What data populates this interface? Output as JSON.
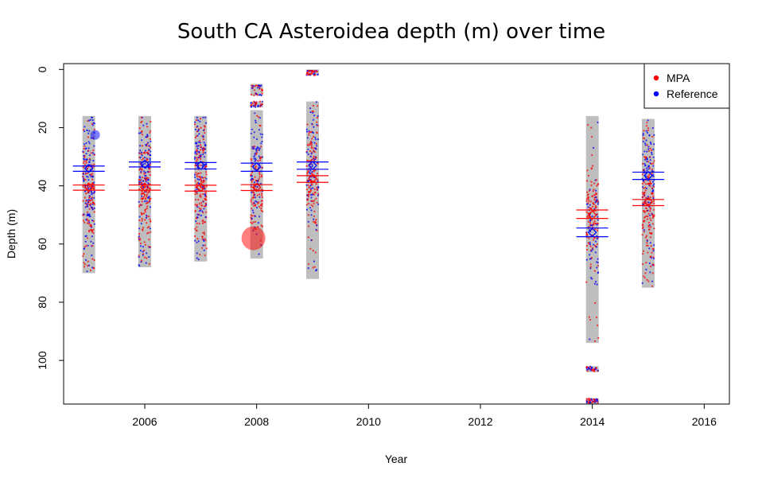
{
  "chart_data": {
    "type": "scatter",
    "title": "South CA Asteroidea depth (m) over time",
    "xlabel": "Year",
    "ylabel": "Depth (m)",
    "xlim": [
      2004.55,
      2016.45
    ],
    "ylim": [
      115,
      -2
    ],
    "y_reversed": true,
    "x_ticks": [
      2006,
      2008,
      2010,
      2012,
      2014,
      2016
    ],
    "y_ticks": [
      0,
      20,
      40,
      60,
      80,
      100
    ],
    "grid": false,
    "legend_position": "top-right",
    "legend": [
      {
        "name": "MPA",
        "color": "#ff0000"
      },
      {
        "name": "Reference",
        "color": "#0000ff"
      }
    ],
    "years": [
      {
        "x": 2005,
        "min_depth": 16,
        "max_depth": 70,
        "gaps": [],
        "mpa_mean": 40.5,
        "mpa_ci": [
          39.7,
          41.5
        ],
        "ref_mean": 34,
        "ref_ci": [
          33.2,
          35.0
        ],
        "big_points": [
          {
            "group": "Reference",
            "depth": 22.5,
            "size": "small"
          }
        ]
      },
      {
        "x": 2006,
        "min_depth": 16,
        "max_depth": 68,
        "gaps": [],
        "mpa_mean": 40.5,
        "mpa_ci": [
          39.7,
          41.5
        ],
        "ref_mean": 32.5,
        "ref_ci": [
          31.8,
          33.5
        ],
        "big_points": []
      },
      {
        "x": 2007,
        "min_depth": 16,
        "max_depth": 66,
        "gaps": [],
        "mpa_mean": 40.5,
        "mpa_ci": [
          39.8,
          41.8
        ],
        "ref_mean": 33,
        "ref_ci": [
          32.0,
          34.2
        ],
        "big_points": []
      },
      {
        "x": 2008,
        "min_depth": 5,
        "max_depth": 65,
        "gaps": [
          [
            9,
            11
          ],
          [
            13,
            14
          ]
        ],
        "mpa_mean": 40.5,
        "mpa_ci": [
          39.6,
          41.6
        ],
        "ref_mean": 33.5,
        "ref_ci": [
          32.2,
          35.0
        ],
        "big_points": [
          {
            "group": "MPA",
            "depth": 58,
            "size": "large"
          }
        ]
      },
      {
        "x": 2009,
        "min_depth": 0,
        "max_depth": 72,
        "gaps": [
          [
            2,
            11
          ]
        ],
        "mpa_mean": 37.5,
        "mpa_ci": [
          36.5,
          38.8
        ],
        "ref_mean": 33,
        "ref_ci": [
          31.8,
          34.3
        ],
        "big_points": []
      },
      {
        "x": 2014,
        "min_depth": 16,
        "max_depth": 115,
        "gaps": [
          [
            94,
            102
          ],
          [
            104,
            113
          ]
        ],
        "mpa_mean": 50,
        "mpa_ci": [
          48.3,
          51.2
        ],
        "ref_mean": 56,
        "ref_ci": [
          54.5,
          57.5
        ],
        "big_points": []
      },
      {
        "x": 2015,
        "min_depth": 17,
        "max_depth": 75,
        "gaps": [],
        "mpa_mean": 45.5,
        "mpa_ci": [
          44.7,
          46.8
        ],
        "ref_mean": 36.5,
        "ref_ci": [
          35.3,
          37.8
        ],
        "big_points": []
      }
    ]
  }
}
